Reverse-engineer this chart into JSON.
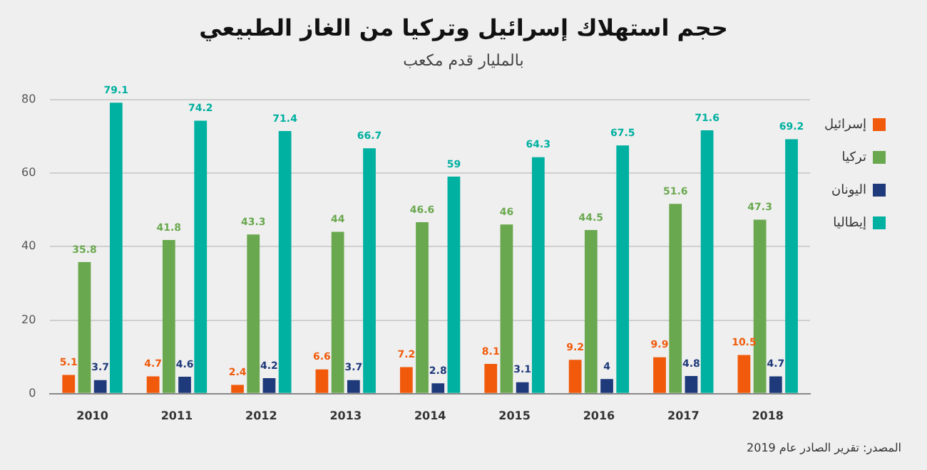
{
  "chart_data": {
    "type": "bar",
    "title": "حجم استهلاك إسرائيل وتركيا  من الغاز الطبيعي",
    "subtitle": "بالمليار قدم مكعب",
    "categories": [
      "2010",
      "2011",
      "2012",
      "2013",
      "2014",
      "2015",
      "2016",
      "2017",
      "2018"
    ],
    "series": [
      {
        "name": "إسرائيل",
        "color": "#f05a0a",
        "values": [
          5.1,
          4.7,
          2.4,
          6.6,
          7.2,
          8.1,
          9.2,
          9.9,
          10.5
        ]
      },
      {
        "name": "تركيا",
        "color": "#6aa84f",
        "values": [
          35.8,
          41.8,
          43.3,
          44,
          46.6,
          46,
          44.5,
          51.6,
          47.3
        ]
      },
      {
        "name": "اليونان",
        "color": "#1f3a7a",
        "values": [
          3.7,
          4.6,
          4.2,
          3.7,
          2.8,
          3.1,
          4,
          4.8,
          4.7
        ]
      },
      {
        "name": "إيطاليا",
        "color": "#00b0a0",
        "values": [
          79.1,
          74.2,
          71.4,
          66.7,
          59,
          64.3,
          67.5,
          71.6,
          69.2
        ]
      }
    ],
    "ylim": [
      0,
      80
    ],
    "yticks": [
      0,
      20,
      40,
      60,
      80
    ],
    "grid": "y",
    "legend": "top right",
    "data_labels": true,
    "annotations": [
      "المصدر: تقرير الصادر عام 2019"
    ]
  }
}
